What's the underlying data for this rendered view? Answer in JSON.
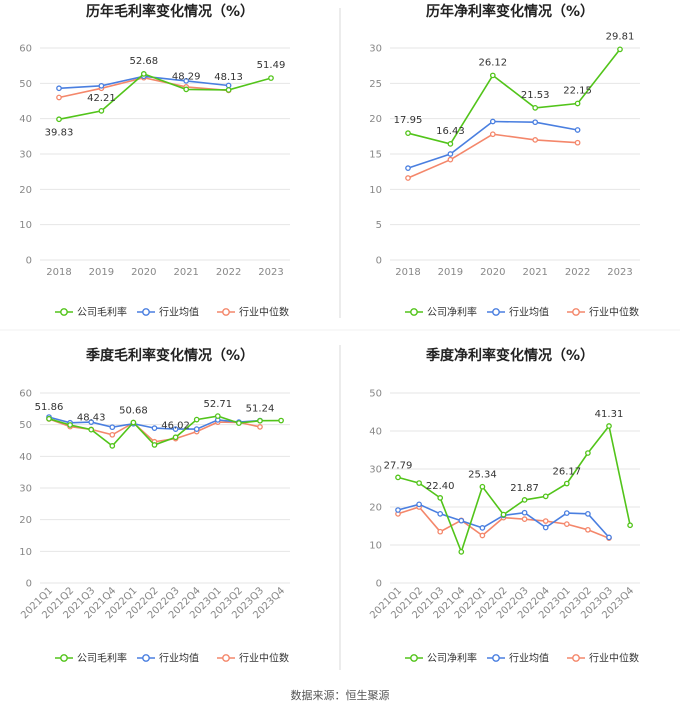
{
  "colors": {
    "company": "#52c41a",
    "industry_avg": "#4a7fe0",
    "industry_median": "#f4876b",
    "grid": "#e6e6e6",
    "divider": "#d9d9d9"
  },
  "chart_data": [
    {
      "type": "line",
      "title": "历年毛利率变化情况（%）",
      "categories": [
        "2018",
        "2019",
        "2020",
        "2021",
        "2022",
        "2023"
      ],
      "ylim": [
        0,
        60
      ],
      "yticks": [
        0,
        10,
        20,
        30,
        40,
        50,
        60
      ],
      "series": [
        {
          "name": "公司毛利率",
          "values": [
            39.83,
            42.21,
            52.68,
            48.29,
            48.13,
            51.49
          ]
        },
        {
          "name": "行业均值",
          "values": [
            48.6,
            49.3,
            52.0,
            50.7,
            49.4,
            null
          ]
        },
        {
          "name": "行业中位数",
          "values": [
            46.0,
            48.6,
            51.6,
            49.0,
            48.0,
            null
          ]
        }
      ],
      "data_labels": [
        "39.83",
        "42.21",
        "52.68",
        "48.29",
        "48.13",
        "51.49"
      ],
      "legend": [
        "公司毛利率",
        "行业均值",
        "行业中位数"
      ]
    },
    {
      "type": "line",
      "title": "历年净利率变化情况（%）",
      "categories": [
        "2018",
        "2019",
        "2020",
        "2021",
        "2022",
        "2023"
      ],
      "ylim": [
        0,
        30
      ],
      "yticks": [
        0,
        5,
        10,
        15,
        20,
        25,
        30
      ],
      "series": [
        {
          "name": "公司净利率",
          "values": [
            17.95,
            16.43,
            26.12,
            21.53,
            22.15,
            29.81
          ]
        },
        {
          "name": "行业均值",
          "values": [
            13.0,
            15.0,
            19.6,
            19.5,
            18.4,
            null
          ]
        },
        {
          "name": "行业中位数",
          "values": [
            11.6,
            14.2,
            17.8,
            17.0,
            16.6,
            null
          ]
        }
      ],
      "data_labels": [
        "17.95",
        "16.43",
        "26.12",
        "21.53",
        "22.15",
        "29.81"
      ],
      "legend": [
        "公司净利率",
        "行业均值",
        "行业中位数"
      ]
    },
    {
      "type": "line",
      "title": "季度毛利率变化情况（%）",
      "categories": [
        "2021Q1",
        "2021Q2",
        "2021Q3",
        "2021Q4",
        "2022Q1",
        "2022Q2",
        "2022Q3",
        "2022Q4",
        "2023Q1",
        "2023Q2",
        "2023Q3",
        "2023Q4"
      ],
      "ylim": [
        0,
        60
      ],
      "yticks": [
        0,
        10,
        20,
        30,
        40,
        50,
        60
      ],
      "series": [
        {
          "name": "公司毛利率",
          "values": [
            51.86,
            49.9,
            48.43,
            43.3,
            50.68,
            43.6,
            46.02,
            51.6,
            52.71,
            50.5,
            51.24,
            51.3
          ]
        },
        {
          "name": "行业均值",
          "values": [
            52.4,
            50.6,
            50.8,
            49.2,
            50.3,
            48.9,
            48.6,
            48.6,
            51.5,
            50.8,
            51.3,
            null
          ]
        },
        {
          "name": "行业中位数",
          "values": [
            51.8,
            49.4,
            48.5,
            46.8,
            50.6,
            44.6,
            45.6,
            47.8,
            50.8,
            50.7,
            49.3,
            null
          ]
        }
      ],
      "data_labels": [
        "51.86",
        "",
        "48.43",
        "",
        "50.68",
        "",
        "46.02",
        "",
        "52.71",
        "",
        "51.24",
        ""
      ],
      "legend": [
        "公司毛利率",
        "行业均值",
        "行业中位数"
      ]
    },
    {
      "type": "line",
      "title": "季度净利率变化情况（%）",
      "categories": [
        "2021Q1",
        "2021Q2",
        "2021Q3",
        "2021Q4",
        "2022Q1",
        "2022Q2",
        "2022Q3",
        "2022Q4",
        "2023Q1",
        "2023Q2",
        "2023Q3",
        "2023Q4"
      ],
      "ylim": [
        0,
        50
      ],
      "yticks": [
        0,
        10,
        20,
        30,
        40,
        50
      ],
      "series": [
        {
          "name": "公司净利率",
          "values": [
            27.79,
            26.3,
            22.4,
            8.2,
            25.34,
            18.0,
            21.87,
            22.8,
            26.17,
            34.2,
            41.31,
            15.2
          ]
        },
        {
          "name": "行业均值",
          "values": [
            19.2,
            20.7,
            18.2,
            16.4,
            14.5,
            17.8,
            18.5,
            14.6,
            18.4,
            18.2,
            12.0,
            null
          ]
        },
        {
          "name": "行业中位数",
          "values": [
            18.2,
            20.0,
            13.5,
            16.5,
            12.5,
            17.2,
            16.8,
            16.3,
            15.5,
            14.0,
            11.8,
            null
          ]
        }
      ],
      "data_labels": [
        "27.79",
        "",
        "22.40",
        "",
        "25.34",
        "",
        "21.87",
        "",
        "26.17",
        "",
        "41.31",
        ""
      ],
      "legend": [
        "公司净利率",
        "行业均值",
        "行业中位数"
      ]
    }
  ],
  "source_text": "数据来源：恒生聚源"
}
